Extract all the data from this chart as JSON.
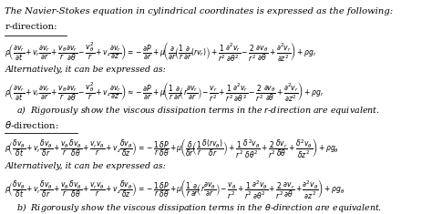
{
  "background_color": "#ffffff",
  "text_color": "#000000",
  "title_line": "The Navier-Stokes equation in cylindrical coordinates is expressed as the following:",
  "alt_line": "Alternatively, it can be expressed as:",
  "part_a": "a)  Rigorously show the viscous dissipation terms in the $r$-direction are equivalent.",
  "part_b": "b)  Rigorously show the viscous dissipation terms in the $\\theta$-direction are equivalent.",
  "fontsize_title": 7.2,
  "fontsize_eq": 5.5,
  "fontsize_text": 6.8,
  "fontsize_label": 7.2
}
